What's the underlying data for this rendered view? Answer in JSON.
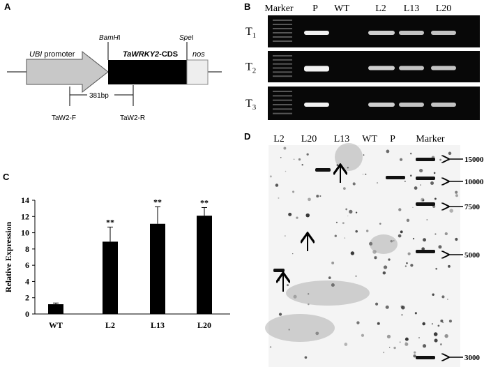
{
  "panels": {
    "a": "A",
    "b": "B",
    "c": "C",
    "d": "D"
  },
  "construct": {
    "promoter_italic": "UBI",
    "promoter_rest": " promoter",
    "gene_italic": "TaWRKY2",
    "gene_rest": "-CDS",
    "terminator": "nos",
    "site1_italic": "BamH",
    "site1_rest": "I",
    "site2_italic": "Spe",
    "site2_rest": "I",
    "amplicon": "381bp",
    "forward": "TaW2-F",
    "reverse": "TaW2-R"
  },
  "gel": {
    "lanes": [
      "Marker",
      "P",
      "WT",
      "L2",
      "L13",
      "L20"
    ],
    "rows": [
      {
        "name": "T",
        "sub": "1"
      },
      {
        "name": "T",
        "sub": "2"
      },
      {
        "name": "T",
        "sub": "3"
      }
    ]
  },
  "southern": {
    "lanes": [
      "L2",
      "L20",
      "L13",
      "WT",
      "P",
      "Marker"
    ],
    "sizes": [
      "15000",
      "10000",
      "7500",
      "5000",
      "3000"
    ]
  },
  "chart_data": {
    "type": "bar",
    "y_label": "Relative Expression",
    "categories": [
      "WT",
      "L2",
      "L13",
      "L20"
    ],
    "values": [
      1.2,
      8.9,
      11.1,
      12.1
    ],
    "errors": [
      0.15,
      1.8,
      2.1,
      1.0
    ],
    "significance": [
      null,
      "**",
      "**",
      "**"
    ],
    "color": "#000000",
    "ylim": [
      0,
      14
    ],
    "yticks": [
      0,
      2,
      4,
      6,
      8,
      10,
      12,
      14
    ]
  }
}
